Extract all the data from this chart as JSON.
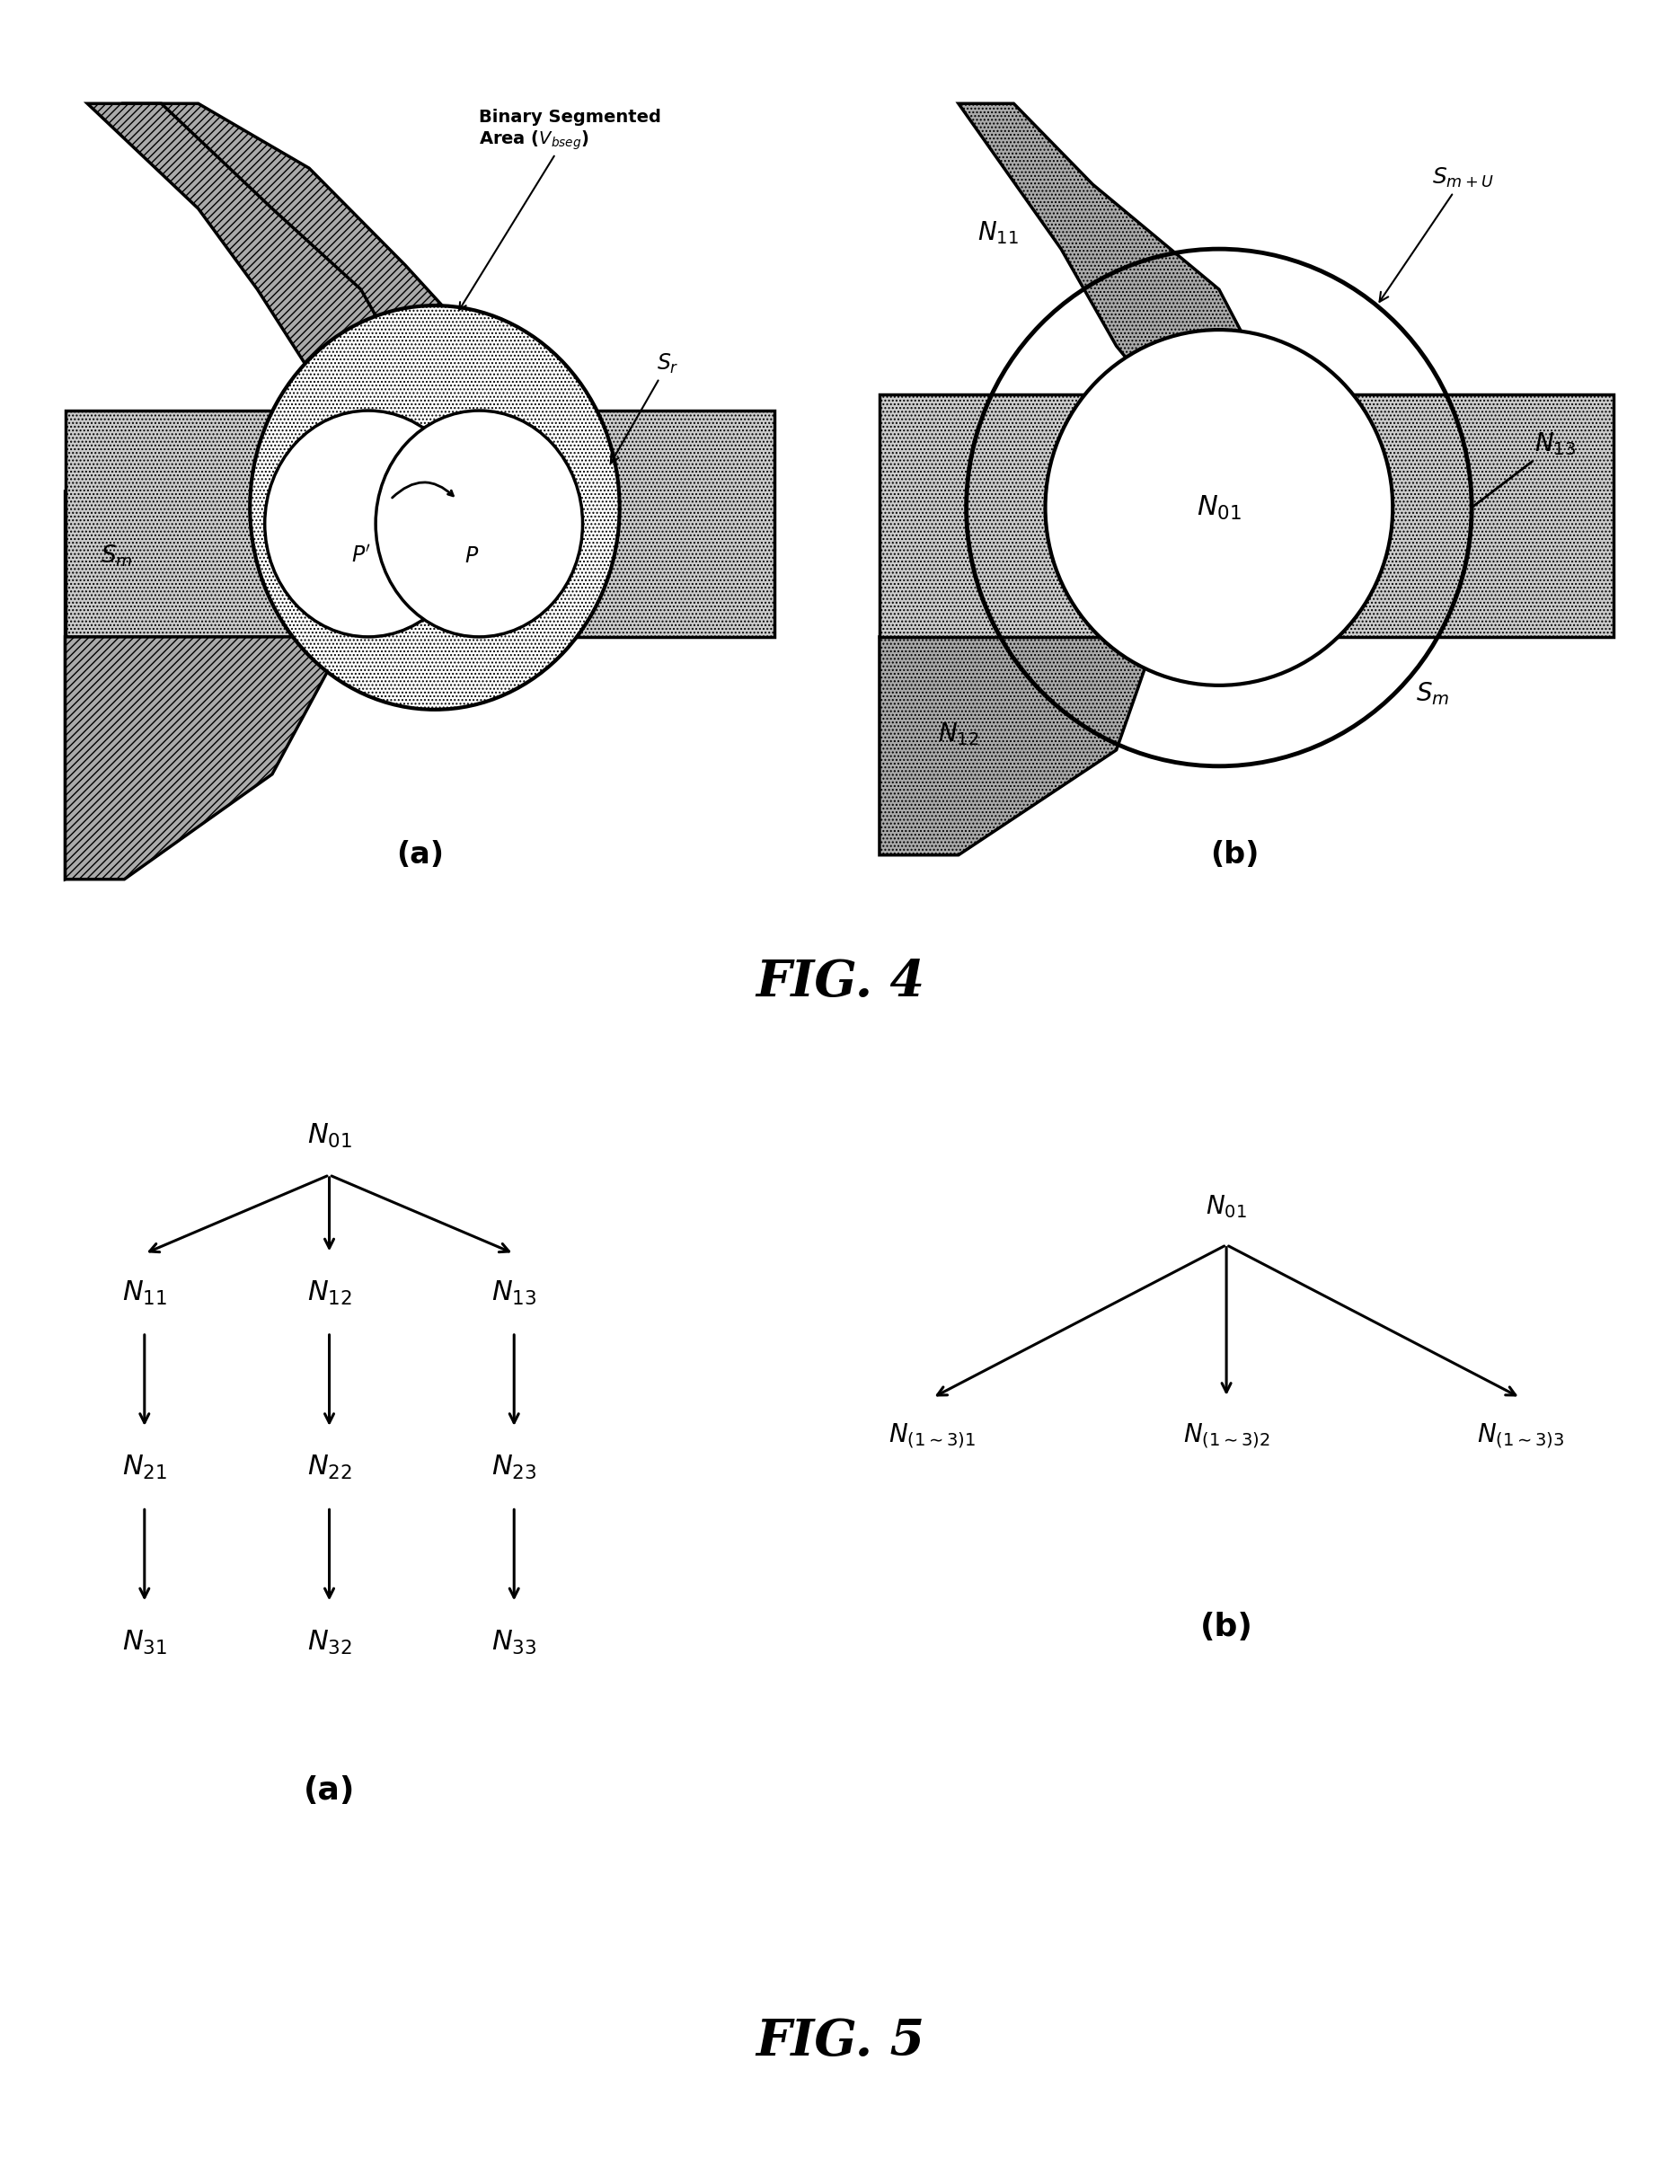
{
  "bg_color": "#ffffff",
  "fig4_title": "FIG. 4",
  "fig5_title": "FIG. 5",
  "fig4a_label": "(a)",
  "fig4b_label": "(b)",
  "fig5a_label": "(a)",
  "fig5b_label": "(b)",
  "hatch_dark": "////",
  "hatch_light": "....",
  "annotation_binary_line1": "Binary Segmented",
  "annotation_binary_line2": "Area (",
  "label_Sm_a": "$S_m$",
  "label_Sr": "$S_r$",
  "label_P": "$P$",
  "label_Pprime": "$P'$",
  "label_N01_b": "$N_{01}$",
  "label_N11_b": "$N_{11}$",
  "label_N12_b": "$N_{12}$",
  "label_N13_b": "$N_{13}$",
  "label_Sm_b": "$S_m$",
  "label_SmU": "$S_{m+U}$",
  "dark_gray": "#aaaaaa",
  "light_gray": "#cccccc",
  "white": "#ffffff"
}
